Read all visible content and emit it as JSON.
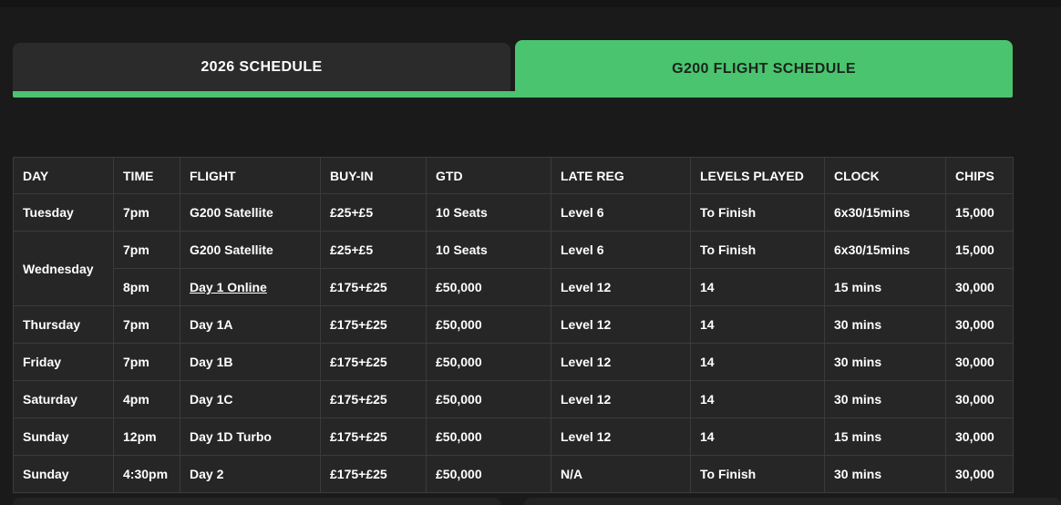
{
  "tabs": [
    {
      "label": "2026 SCHEDULE",
      "active": false
    },
    {
      "label": "G200 FLIGHT SCHEDULE",
      "active": true
    }
  ],
  "colors": {
    "green": "#4ac46e",
    "page_bg": "#1a1a1a",
    "cell_bg": "#262626",
    "border": "#3b3b3b",
    "tab_inactive_bg": "#2b2b2b",
    "text_light": "#ffffff",
    "tab_active_text": "#1a241c"
  },
  "table": {
    "columns": [
      "DAY",
      "TIME",
      "FLIGHT",
      "BUY-IN",
      "GTD",
      "LATE REG",
      "LEVELS PLAYED",
      "CLOCK",
      "CHIPS"
    ],
    "rows": [
      {
        "day": "Tuesday",
        "day_rowspan": 1,
        "time": "7pm",
        "flight": "G200 Satellite",
        "flight_link": false,
        "buy_in": "£25+£5",
        "gtd": "10 Seats",
        "late_reg": "Level 6",
        "levels_played": "To Finish",
        "clock": "6x30/15mins",
        "chips": "15,000"
      },
      {
        "day": "Wednesday",
        "day_rowspan": 2,
        "time": "7pm",
        "flight": "G200 Satellite",
        "flight_link": false,
        "buy_in": "£25+£5",
        "gtd": "10 Seats",
        "late_reg": "Level 6",
        "levels_played": "To Finish",
        "clock": "6x30/15mins",
        "chips": "15,000"
      },
      {
        "day": null,
        "time": "8pm",
        "flight": "Day 1 Online",
        "flight_link": true,
        "buy_in": "£175+£25",
        "gtd": "£50,000",
        "late_reg": "Level 12",
        "levels_played": "14",
        "clock": "15 mins",
        "chips": "30,000"
      },
      {
        "day": "Thursday",
        "day_rowspan": 1,
        "time": "7pm",
        "flight": "Day 1A",
        "flight_link": false,
        "buy_in": "£175+£25",
        "gtd": "£50,000",
        "late_reg": "Level 12",
        "levels_played": "14",
        "clock": "30 mins",
        "chips": "30,000"
      },
      {
        "day": "Friday",
        "day_rowspan": 1,
        "time": "7pm",
        "flight": "Day 1B",
        "flight_link": false,
        "buy_in": "£175+£25",
        "gtd": "£50,000",
        "late_reg": "Level 12",
        "levels_played": "14",
        "clock": "30 mins",
        "chips": "30,000"
      },
      {
        "day": "Saturday",
        "day_rowspan": 1,
        "time": "4pm",
        "flight": "Day 1C",
        "flight_link": false,
        "buy_in": "£175+£25",
        "gtd": "£50,000",
        "late_reg": "Level 12",
        "levels_played": "14",
        "clock": "30 mins",
        "chips": "30,000"
      },
      {
        "day": "Sunday",
        "day_rowspan": 1,
        "time": "12pm",
        "flight": "Day 1D Turbo",
        "flight_link": false,
        "buy_in": "£175+£25",
        "gtd": "£50,000",
        "late_reg": "Level 12",
        "levels_played": "14",
        "clock": "15 mins",
        "chips": "30,000"
      },
      {
        "day": "Sunday",
        "day_rowspan": 1,
        "time": "4:30pm",
        "flight": "Day 2",
        "flight_link": false,
        "buy_in": "£175+£25",
        "gtd": "£50,000",
        "late_reg": "N/A",
        "levels_played": "To Finish",
        "clock": "30 mins",
        "chips": "30,000"
      }
    ]
  }
}
